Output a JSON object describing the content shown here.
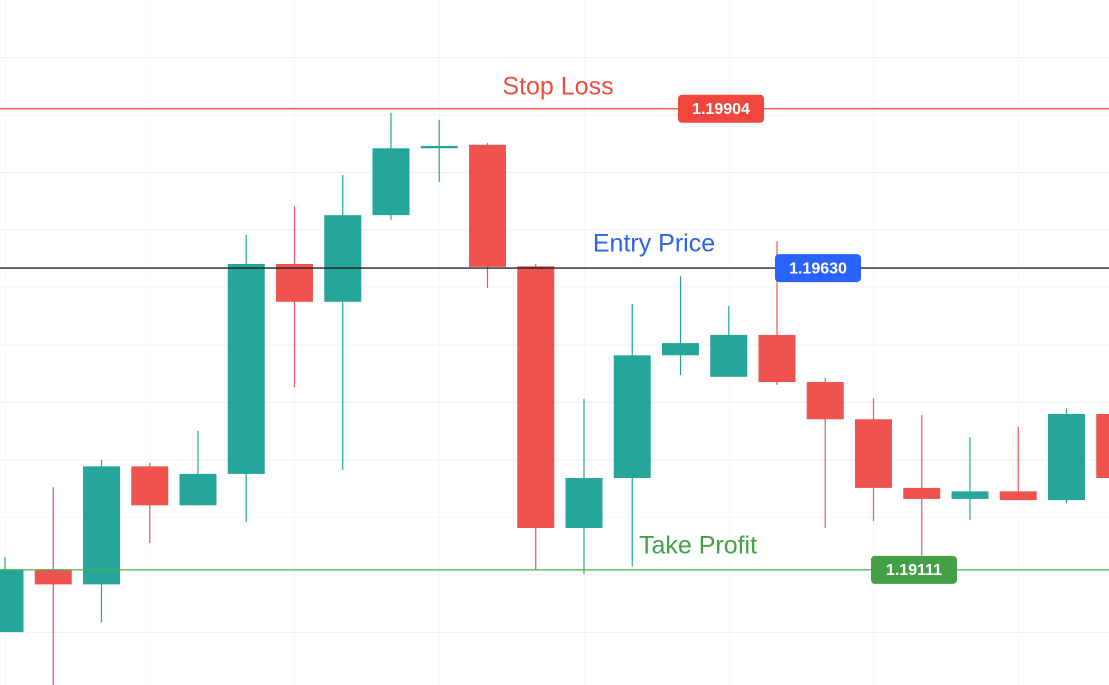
{
  "chart_data": {
    "type": "candlestick",
    "up_color": "#26a69a",
    "down_color": "#ef5350",
    "grid": true,
    "ylim": [
      1.18913,
      1.20091
    ],
    "open": [
      1.19004,
      1.19112,
      1.19086,
      1.19289,
      1.19222,
      1.19276,
      1.19637,
      1.19572,
      1.19721,
      1.19836,
      1.19842,
      1.19633,
      1.19183,
      1.19269,
      1.1948,
      1.19443,
      1.19515,
      1.19434,
      1.1937,
      1.19252,
      1.19233,
      1.19246,
      1.19231,
      1.19379
    ],
    "high": [
      1.19133,
      1.19253,
      1.193,
      1.19295,
      1.1935,
      1.19687,
      1.19737,
      1.1979,
      1.19897,
      1.19885,
      1.19845,
      1.19637,
      1.19405,
      1.19568,
      1.19616,
      1.19565,
      1.19676,
      1.19441,
      1.19406,
      1.19377,
      1.19339,
      1.19357,
      1.19389,
      1.19379
    ],
    "low": [
      1.19004,
      1.18913,
      1.19021,
      1.19157,
      1.19222,
      1.19193,
      1.19425,
      1.19283,
      1.19713,
      1.19778,
      1.19596,
      1.19112,
      1.19104,
      1.19117,
      1.19446,
      1.19443,
      1.19429,
      1.19183,
      1.19195,
      1.19136,
      1.19197,
      1.19231,
      1.19226,
      1.19269
    ],
    "close": [
      1.19112,
      1.19086,
      1.19289,
      1.19222,
      1.19276,
      1.19637,
      1.19572,
      1.19721,
      1.19836,
      1.1984,
      1.19632,
      1.19183,
      1.19269,
      1.1948,
      1.19501,
      1.19515,
      1.19434,
      1.1937,
      1.19252,
      1.19233,
      1.19246,
      1.19231,
      1.19379,
      1.19269
    ],
    "levels": [
      {
        "name": "Stop Loss",
        "value": 1.19904,
        "line_color": "#f0463e",
        "text_color": "#ef4b3f",
        "badge_color": "#f0463e"
      },
      {
        "name": "Entry Price",
        "value": 1.1963,
        "value_label": "1.19630",
        "line_color": "#222222",
        "text_color": "#2d62e8",
        "badge_color": "#2962ff"
      },
      {
        "name": "Take Profit",
        "value": 1.19111,
        "line_color": "#4caf50",
        "text_color": "#43a047",
        "badge_color": "#43a047"
      }
    ]
  }
}
